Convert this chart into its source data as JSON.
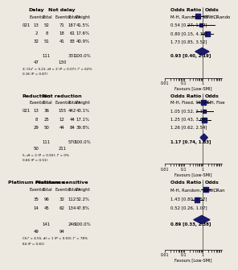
{
  "panels": [
    {
      "title_left": "Delay",
      "title_right": "Not delay",
      "method_short": "M-H, Random, 95% CI",
      "method_label": "M-H, Rando",
      "rows": [
        {
          "label": "021",
          "e1": 13,
          "t1": 52,
          "e2": 71,
          "t2": 187,
          "weight": "41.5%",
          "or": 0.54,
          "ci_lo": 0.27,
          "ci_hi": 1.09,
          "or_str": "0.54 [0.27, 1.09]"
        },
        {
          "label": "",
          "e1": 2,
          "t1": 8,
          "e2": 18,
          "t2": 61,
          "weight": "17.6%",
          "or": 0.8,
          "ci_lo": 0.15,
          "ci_hi": 4.33,
          "or_str": "0.80 [0.15, 4.33]"
        },
        {
          "label": "",
          "e1": 32,
          "t1": 51,
          "e2": 41,
          "t2": 83,
          "weight": "40.9%",
          "or": 1.73,
          "ci_lo": 0.85,
          "ci_hi": 3.52,
          "or_str": "1.73 [0.85, 3.52]"
        }
      ],
      "total_t1": 111,
      "total_t2": 331,
      "total_weight": "100.0%",
      "total_or": 0.93,
      "total_ci_lo": 0.4,
      "total_ci_hi": 2.19,
      "total_or_str": "0.93 [0.40, 2.19]",
      "sub1": 47,
      "sub2": 130,
      "fn1": "3; Chi² = 5.21, df = 2 (P = 0.07); I² = 62%",
      "fn2": "0.16 (P = 0.87)"
    },
    {
      "title_left": "Reduction",
      "title_right": "Not reduction",
      "method_short": "M-H, Fixed, 95% CI",
      "method_label": "M-H, Fixe",
      "rows": [
        {
          "label": "021",
          "e1": 13,
          "t1": 36,
          "e2": 155,
          "t2": 442,
          "weight": "43.1%",
          "or": 1.05,
          "ci_lo": 0.52,
          "ci_hi": 2.12,
          "or_str": "1.05 [0.52, 2.12]"
        },
        {
          "label": "",
          "e1": 8,
          "t1": 25,
          "e2": 12,
          "t2": 44,
          "weight": "17.1%",
          "or": 1.25,
          "ci_lo": 0.43,
          "ci_hi": 3.66,
          "or_str": "1.25 [0.43, 3.66]"
        },
        {
          "label": "",
          "e1": 29,
          "t1": 50,
          "e2": 44,
          "t2": 84,
          "weight": "39.8%",
          "or": 1.26,
          "ci_lo": 0.62,
          "ci_hi": 2.54,
          "or_str": "1.26 [0.62, 2.54]"
        }
      ],
      "total_t1": 111,
      "total_t2": 570,
      "total_weight": "100.0%",
      "total_or": 1.17,
      "total_ci_lo": 0.74,
      "total_ci_hi": 1.83,
      "total_or_str": "1.17 [0.74, 1.83]",
      "sub1": 50,
      "sub2": 211,
      "fn1": "5, df = 2 (P = 0.93); I² = 0%",
      "fn2": "0.66 (P = 0.51)"
    },
    {
      "title_left": "Platinum resistance",
      "title_right": "Platinum sensitive",
      "method_short": "M-H, Random, 95% CI",
      "method_label": "M-H, Ran",
      "rows": [
        {
          "label": "",
          "e1": 35,
          "t1": 96,
          "e2": 32,
          "t2": 112,
          "weight": "52.2%",
          "or": 1.43,
          "ci_lo": 0.8,
          "ci_hi": 2.57,
          "or_str": "1.43 [0.80, 2.57]"
        },
        {
          "label": "",
          "e1": 14,
          "t1": 45,
          "e2": 62,
          "t2": 134,
          "weight": "47.8%",
          "or": 0.52,
          "ci_lo": 0.26,
          "ci_hi": 1.07,
          "or_str": "0.52 [0.26, 1.07]"
        }
      ],
      "total_t1": 141,
      "total_t2": 246,
      "total_weight": "100.0%",
      "total_or": 0.89,
      "total_ci_lo": 0.33,
      "total_ci_hi": 2.38,
      "total_or_str": "0.89 [0.33, 2.38]",
      "sub1": 49,
      "sub2": 94,
      "fn1": "Chi² = 4.55, df = 1 (P = 0.03); I² = 78%",
      "fn2": "84 (P = 0.81)"
    }
  ],
  "xlim": [
    0.01,
    10
  ],
  "xticks": [
    0.01,
    0.1,
    1
  ],
  "xticklabels": [
    "0.01",
    "0.1",
    "1"
  ],
  "xlabel": "Favours [Low-SMI]",
  "diamond_color": "#1a1a6e",
  "square_color": "#1a1a6e",
  "bg_color": "#ede8e0",
  "font_size": 4.2,
  "header_font_size": 4.5
}
